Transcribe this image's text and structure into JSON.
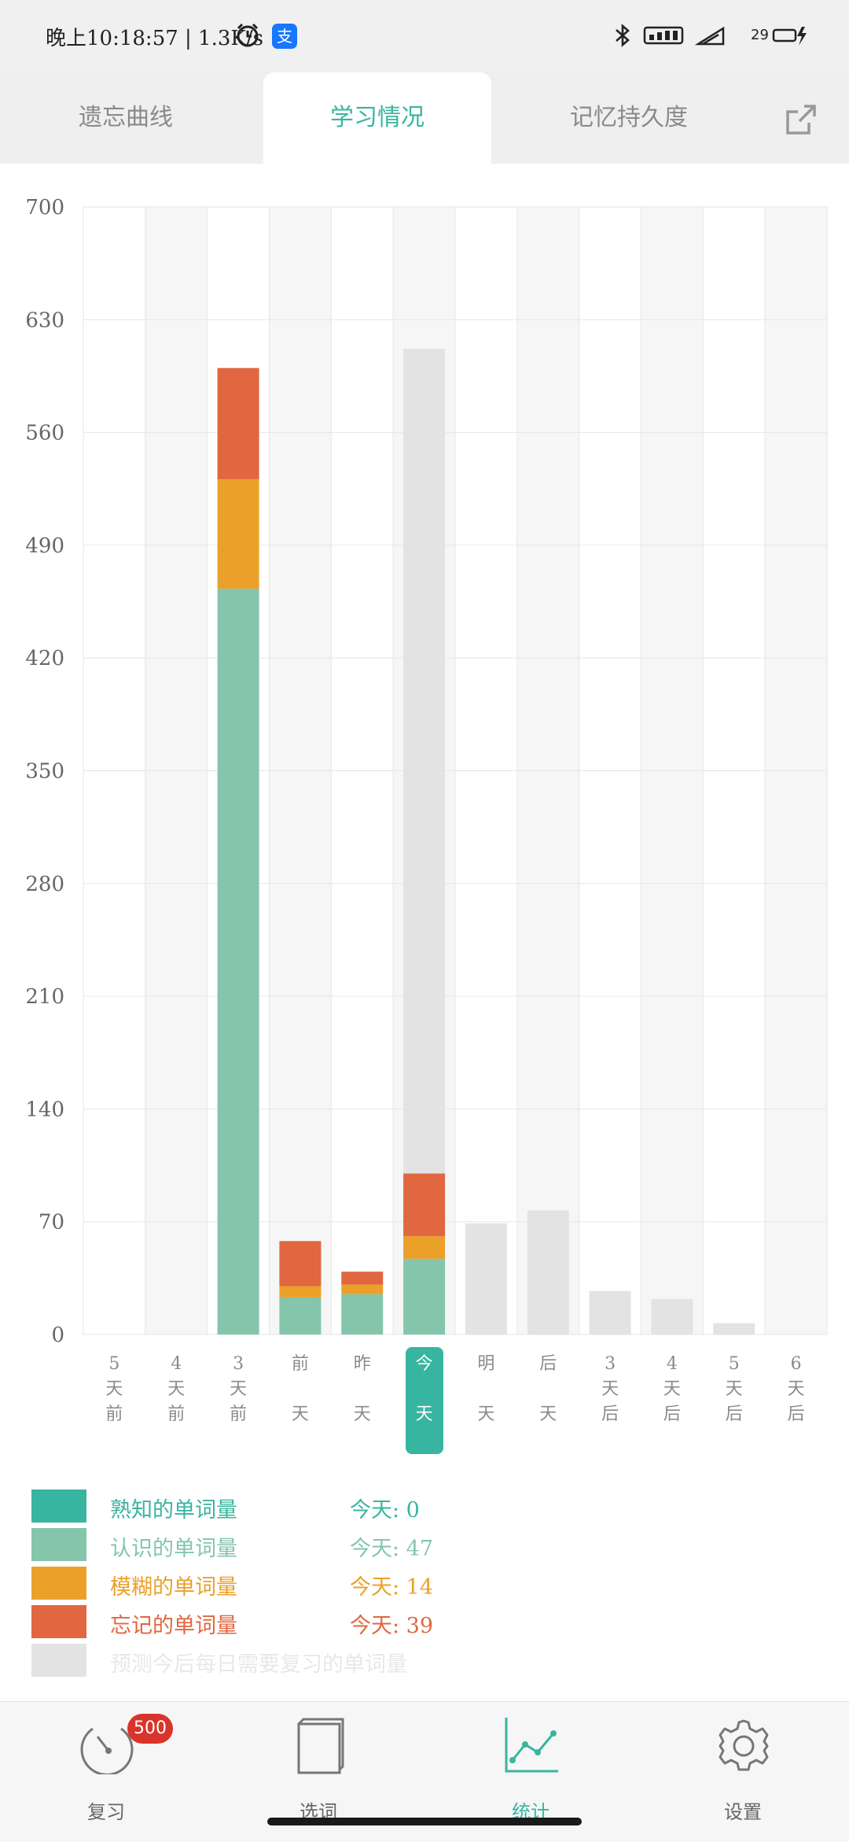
{
  "status_bar": {
    "time": "晚上10:18:57 | 1.3K/s",
    "alipay_glyph": "支",
    "battery": "29"
  },
  "tabs": [
    {
      "label": "遗忘曲线",
      "active": false
    },
    {
      "label": "学习情况",
      "active": true
    },
    {
      "label": "记忆持久度",
      "active": false
    }
  ],
  "chart_data": {
    "type": "bar",
    "stacked": true,
    "ylim": [
      0,
      700
    ],
    "yticks": [
      0,
      70,
      140,
      210,
      280,
      350,
      420,
      490,
      560,
      630,
      700
    ],
    "categories": [
      "5天前",
      "4天前",
      "3天前",
      "前天",
      "昨天",
      "今天",
      "明天",
      "后天",
      "3天后",
      "4天后",
      "5天后",
      "6天后"
    ],
    "category_labels": [
      [
        "5",
        "天",
        "前"
      ],
      [
        "4",
        "天",
        "前"
      ],
      [
        "3",
        "天",
        "前"
      ],
      [
        "前",
        "",
        "天"
      ],
      [
        "昨",
        "",
        "天"
      ],
      [
        "今",
        "",
        "天"
      ],
      [
        "明",
        "",
        "天"
      ],
      [
        "后",
        "",
        "天"
      ],
      [
        "3",
        "天",
        "后"
      ],
      [
        "4",
        "天",
        "后"
      ],
      [
        "5",
        "天",
        "后"
      ],
      [
        "6",
        "天",
        "后"
      ]
    ],
    "highlighted_category": "今天",
    "series": [
      {
        "name": "熟知的单词量",
        "color": "#38b5a0",
        "values": [
          0,
          0,
          0,
          0,
          0,
          0,
          0,
          0,
          0,
          0,
          0,
          0
        ]
      },
      {
        "name": "认识的单词量",
        "color": "#84c5ab",
        "values": [
          0,
          0,
          463,
          23,
          25,
          47,
          0,
          0,
          0,
          0,
          0,
          0
        ]
      },
      {
        "name": "模糊的单词量",
        "color": "#eba02a",
        "values": [
          0,
          0,
          68,
          7,
          6,
          14,
          0,
          0,
          0,
          0,
          0,
          0
        ]
      },
      {
        "name": "忘记的单词量",
        "color": "#e0673f",
        "values": [
          0,
          0,
          69,
          28,
          8,
          39,
          0,
          0,
          0,
          0,
          0,
          0
        ]
      },
      {
        "name": "预测今后每日需要复习的单词量",
        "color": "#e3e3e3",
        "values": [
          0,
          0,
          0,
          0,
          0,
          512,
          69,
          77,
          27,
          22,
          7,
          0
        ]
      }
    ],
    "grid": true
  },
  "legend": [
    {
      "name": "熟知的单词量",
      "today": "今天: 0",
      "color": "#38b5a0",
      "text_color": "#38b5a0"
    },
    {
      "name": "认识的单词量",
      "today": "今天: 47",
      "color": "#84c5ab",
      "text_color": "#84c5ab"
    },
    {
      "name": "模糊的单词量",
      "today": "今天: 14",
      "color": "#eba02a",
      "text_color": "#eba02a"
    },
    {
      "name": "忘记的单词量",
      "today": "今天: 39",
      "color": "#e0673f",
      "text_color": "#e0673f"
    },
    {
      "name": "预测今后每日需要复习的单词量",
      "today": "",
      "color": "#e3e3e3",
      "text_color": "#e8e8e8"
    }
  ],
  "bottom_nav": [
    {
      "label": "复习",
      "icon": "gauge-icon",
      "badge": "500",
      "active": false
    },
    {
      "label": "选词",
      "icon": "book-icon",
      "active": false
    },
    {
      "label": "统计",
      "icon": "line-chart-icon",
      "active": true
    },
    {
      "label": "设置",
      "icon": "gear-icon",
      "active": false
    }
  ]
}
